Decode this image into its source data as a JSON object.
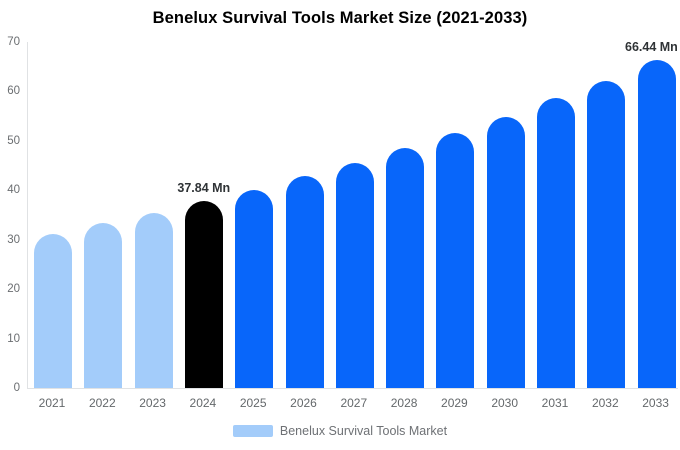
{
  "title": "Benelux Survival Tools Market Size (2021-2033)",
  "legend": {
    "items": [
      {
        "label": "Benelux Survival Tools Market",
        "swatch_color": "#a3ccfa"
      }
    ]
  },
  "colors": {
    "historical_bar": "#a3ccfa",
    "base_year_bar": "#000000",
    "forecast_bar": "#0866fa",
    "axis_line": "#e0e2e4",
    "axis_text": "#6b6e71",
    "point_label_text": "#2f3336"
  },
  "chart_data": {
    "type": "bar",
    "title": "Benelux Survival Tools Market Size (2021-2033)",
    "unit": "Mn",
    "categories": [
      "2021",
      "2022",
      "2023",
      "2024",
      "2025",
      "2026",
      "2027",
      "2028",
      "2029",
      "2030",
      "2031",
      "2032",
      "2033"
    ],
    "series": [
      {
        "name": "Benelux Survival Tools Market",
        "values": [
          31.2,
          33.3,
          35.4,
          37.84,
          40.1,
          42.8,
          45.5,
          48.5,
          51.6,
          54.9,
          58.6,
          62.2,
          66.44
        ]
      }
    ],
    "bar_colors": [
      "#a3ccfa",
      "#a3ccfa",
      "#a3ccfa",
      "#000000",
      "#0866fa",
      "#0866fa",
      "#0866fa",
      "#0866fa",
      "#0866fa",
      "#0866fa",
      "#0866fa",
      "#0866fa",
      "#0866fa"
    ],
    "point_labels": [
      {
        "category": "2024",
        "text": "37.84 Mn"
      },
      {
        "category": "2033",
        "text": "66.44 Mn"
      }
    ],
    "xlabel": "",
    "ylabel": "",
    "ylim": [
      0,
      70
    ],
    "yticks": [
      0,
      10,
      20,
      30,
      40,
      50,
      60,
      70
    ],
    "grid": false,
    "legend_position": "bottom"
  }
}
